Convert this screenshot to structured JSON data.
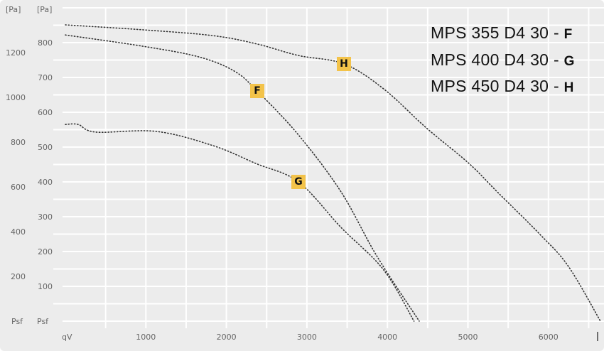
{
  "chart_data": {
    "type": "line",
    "title": "",
    "xlabel": "qV",
    "ylabel": "[Pa]",
    "ylabel_secondary": "[Pa]",
    "y_zero_label": "Psf",
    "y_zero_label_secondary": "Psf",
    "xlim": [
      0,
      6700
    ],
    "ylim": [
      0,
      880
    ],
    "x_ticks": [
      1000,
      2000,
      3000,
      4000,
      5000,
      6000
    ],
    "y_ticks": [
      100,
      200,
      300,
      400,
      500,
      600,
      700,
      800
    ],
    "y_ticks_secondary": [
      200,
      400,
      600,
      800,
      1000,
      1200
    ],
    "secondary_scale": 1.555,
    "grid": true,
    "series": [
      {
        "name": "MPS 355 D4 30",
        "code": "F",
        "label_at": [
          2383,
          661
        ],
        "x": [
          0,
          953,
          1659,
          2100,
          2383,
          2895,
          3425,
          3866,
          4395
        ],
        "y": [
          822,
          790,
          759,
          718,
          661,
          535,
          371,
          188,
          0
        ]
      },
      {
        "name": "MPS 400 D4 30",
        "code": "G",
        "label_at": [
          2895,
          400
        ],
        "x": [
          0,
          159,
          380,
          1130,
          1836,
          2365,
          2895,
          3425,
          3954,
          4330
        ],
        "y": [
          565,
          565,
          543,
          545,
          504,
          453,
          400,
          269,
          147,
          0
        ]
      },
      {
        "name": "MPS 450 D4 30",
        "code": "H",
        "label_at": [
          3460,
          739
        ],
        "x": [
          0,
          953,
          1836,
          2383,
          2895,
          3460,
          3954,
          4484,
          5013,
          5366,
          5896,
          6249,
          6646
        ],
        "y": [
          851,
          837,
          820,
          796,
          763,
          739,
          667,
          555,
          453,
          371,
          249,
          157,
          0
        ]
      }
    ]
  }
}
